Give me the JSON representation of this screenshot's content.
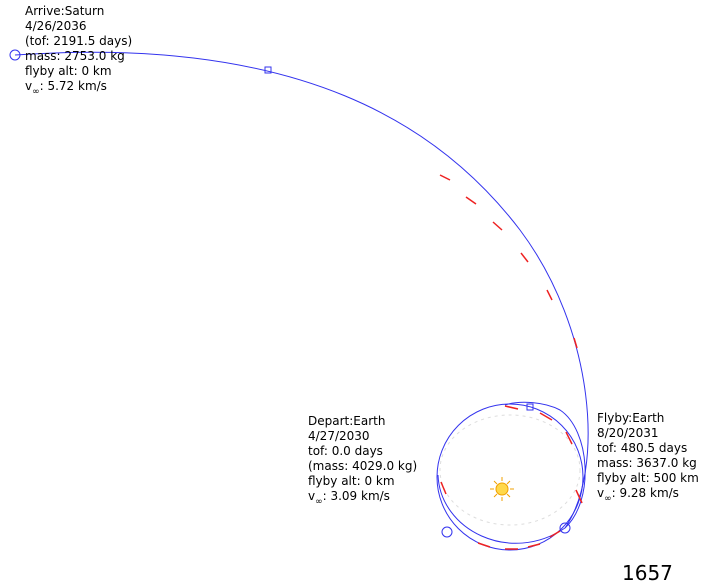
{
  "events": [
    {
      "lines": [
        "Arrive:Saturn",
        "4/26/2036",
        "(tof: 2191.5 days)",
        "mass: 2753.0 kg",
        "flyby alt: 0 km"
      ],
      "vinf": {
        "symbol": "v",
        "subscript": "∞",
        "text": ": 5.72 km/s"
      }
    },
    {
      "lines": [
        "Depart:Earth",
        "4/27/2030",
        "tof: 0.0 days",
        "(mass: 4029.0 kg)",
        "flyby alt: 0 km"
      ],
      "vinf": {
        "symbol": "v",
        "subscript": "∞",
        "text": ": 3.09 km/s"
      }
    },
    {
      "lines": [
        "Flyby:Earth",
        "8/20/2031",
        "tof: 480.5 days",
        "mass: 3637.0 kg",
        "flyby alt: 500 km"
      ],
      "vinf": {
        "symbol": "v",
        "subscript": "∞",
        "text": ": 9.28 km/s"
      }
    }
  ],
  "footer": "1657"
}
